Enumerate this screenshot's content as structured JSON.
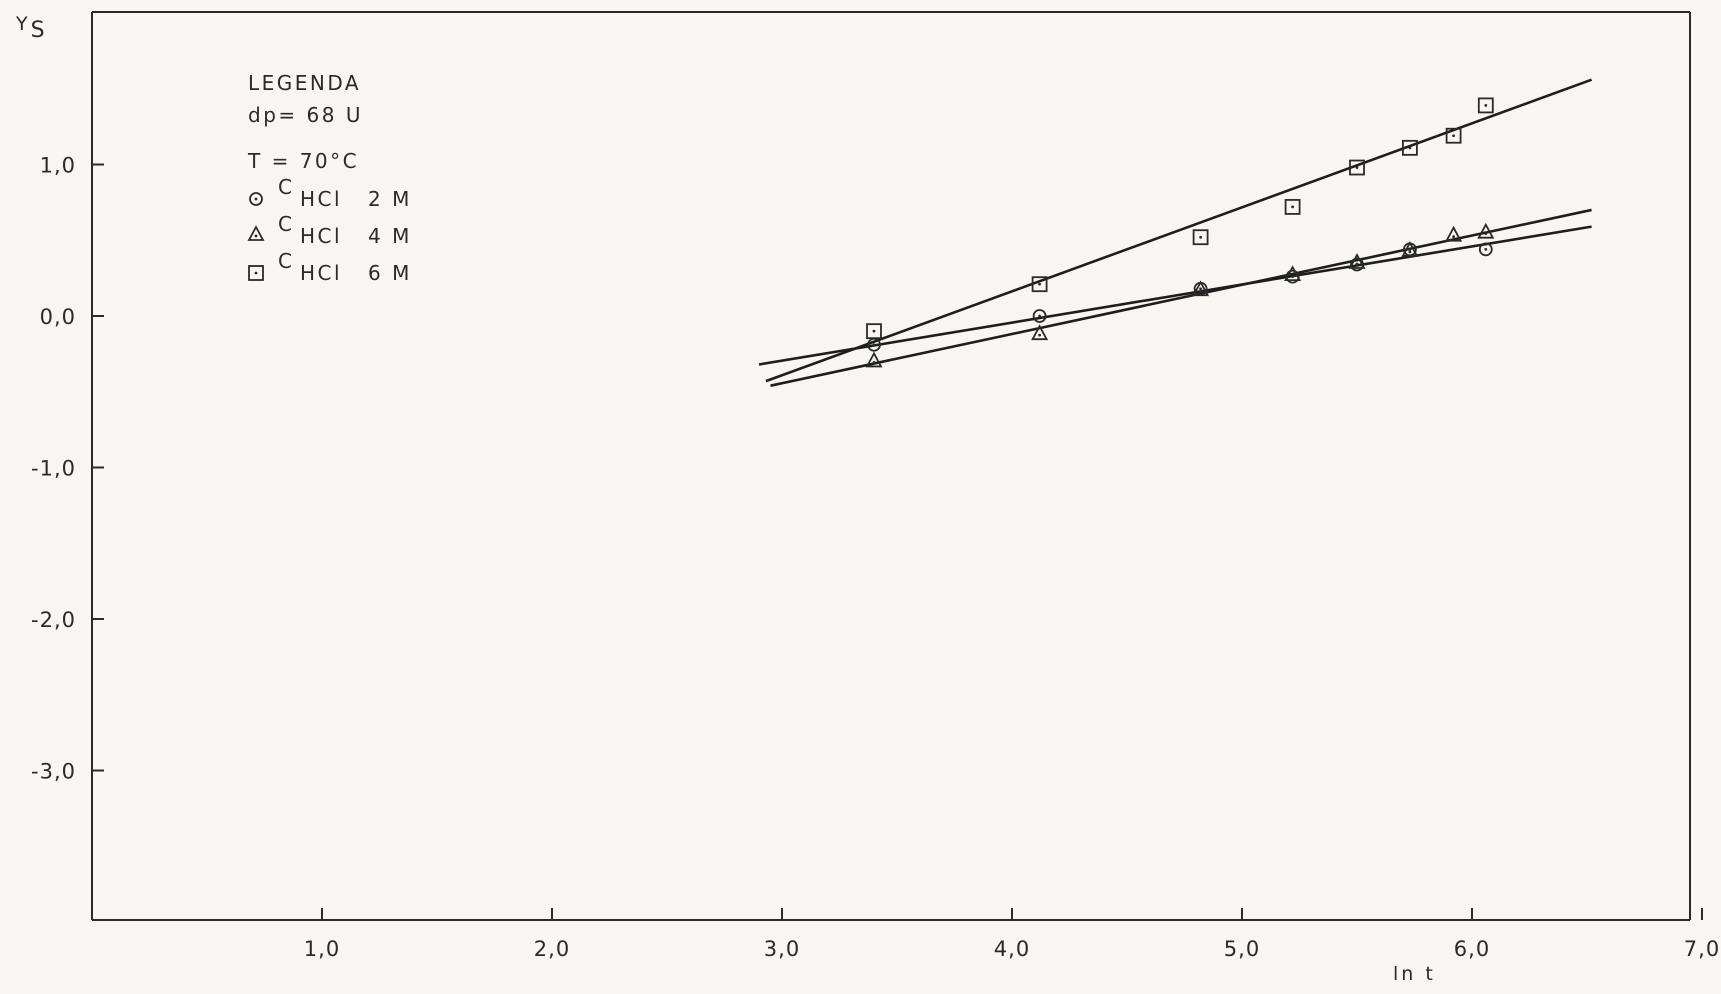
{
  "chart_data": {
    "type": "scatter",
    "title": "",
    "xlabel": "ln t",
    "ylabel_main": "Y",
    "ylabel_sub": "S",
    "xlim": [
      0,
      7
    ],
    "ylim": [
      -4,
      2
    ],
    "x_ticks": [
      1.0,
      2.0,
      3.0,
      4.0,
      5.0,
      6.0,
      7.0
    ],
    "x_tick_labels": [
      "1,0",
      "2,0",
      "3,0",
      "4,0",
      "5,0",
      "6,0",
      "7,0"
    ],
    "y_ticks": [
      1.0,
      0.0,
      -1.0,
      -2.0,
      -3.0
    ],
    "y_tick_labels": [
      "1,0",
      "0,0",
      "-1,0",
      "-2,0",
      "-3,0"
    ],
    "grid": false,
    "legend": {
      "position": "top-left",
      "title": "LEGENDA",
      "lines": [
        "dp= 68 U",
        "T = 70°C"
      ],
      "entries": [
        {
          "prefix": "C",
          "sub": "HCl",
          "conc": "2 M",
          "marker": "circle"
        },
        {
          "prefix": "C",
          "sub": "HCl",
          "conc": "4 M",
          "marker": "triangle"
        },
        {
          "prefix": "C",
          "sub": "HCl",
          "conc": "6 M",
          "marker": "square"
        }
      ]
    },
    "series": [
      {
        "name": "CHCl 2 M",
        "marker": "circle",
        "points": [
          [
            3.4,
            -0.19
          ],
          [
            4.12,
            0.0
          ],
          [
            4.82,
            0.18
          ],
          [
            5.22,
            0.26
          ],
          [
            5.5,
            0.34
          ],
          [
            5.73,
            0.44
          ],
          [
            6.06,
            0.44
          ]
        ],
        "fit": [
          [
            2.9,
            -0.32
          ],
          [
            6.52,
            0.59
          ]
        ]
      },
      {
        "name": "CHCl 4 M",
        "marker": "triangle",
        "points": [
          [
            3.4,
            -0.3
          ],
          [
            4.12,
            -0.12
          ],
          [
            4.82,
            0.17
          ],
          [
            5.22,
            0.27
          ],
          [
            5.5,
            0.35
          ],
          [
            5.73,
            0.43
          ],
          [
            5.92,
            0.53
          ],
          [
            6.06,
            0.55
          ]
        ],
        "fit": [
          [
            2.95,
            -0.46
          ],
          [
            6.52,
            0.7
          ]
        ]
      },
      {
        "name": "CHCl 6 M",
        "marker": "square",
        "points": [
          [
            3.4,
            -0.1
          ],
          [
            4.12,
            0.21
          ],
          [
            4.82,
            0.52
          ],
          [
            5.22,
            0.72
          ],
          [
            5.5,
            0.98
          ],
          [
            5.73,
            1.11
          ],
          [
            5.92,
            1.19
          ],
          [
            6.06,
            1.39
          ]
        ],
        "fit": [
          [
            2.93,
            -0.43
          ],
          [
            6.52,
            1.56
          ]
        ]
      }
    ]
  }
}
